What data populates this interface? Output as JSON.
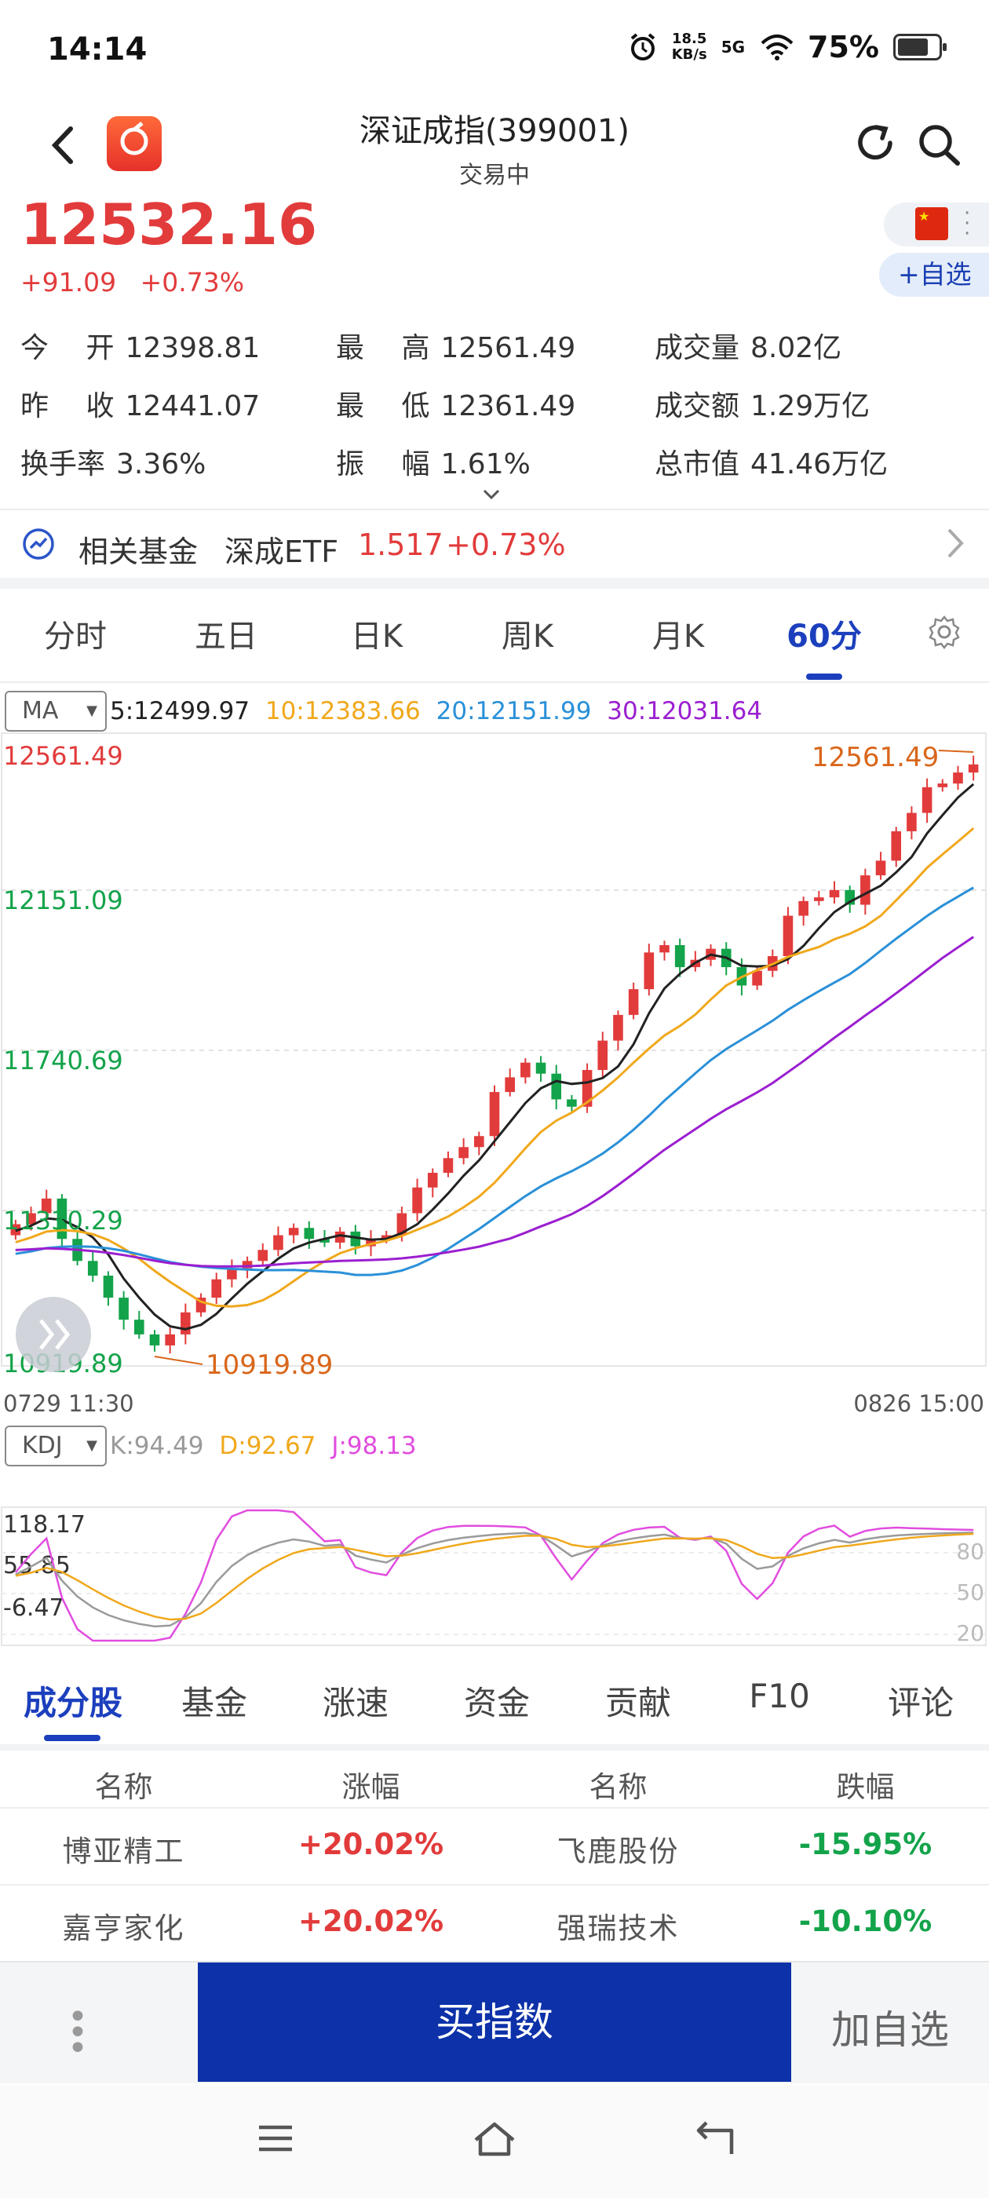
{
  "status_bar": {
    "time": "14:14",
    "speed_top": "18.5",
    "speed_unit": "KB/s",
    "network": "5G",
    "battery": "75%",
    "battery_level": 0.75,
    "icons": [
      "alarm-icon",
      "signal-icon",
      "wifi-icon",
      "battery-icon"
    ]
  },
  "header": {
    "title": "深证成指(399001)",
    "subtitle": "交易中",
    "icons": [
      "back-arrow-icon",
      "app-logo",
      "refresh-icon",
      "search-icon"
    ]
  },
  "quote": {
    "price": "12532.16",
    "change": "+91.09",
    "change_pct": "+0.73%",
    "add_watch": "+自选",
    "up_color": "#e23b3b",
    "down_color": "#13a34a"
  },
  "stats": [
    {
      "label": "今 　开",
      "value": "12398.81"
    },
    {
      "label": "最 　高",
      "value": "12561.49"
    },
    {
      "label": "成交量",
      "value": "8.02亿"
    },
    {
      "label": "昨 　收",
      "value": "12441.07"
    },
    {
      "label": "最 　低",
      "value": "12361.49"
    },
    {
      "label": "成交额",
      "value": "1.29万亿"
    },
    {
      "label": "换手率",
      "value": "3.36%"
    },
    {
      "label": "振 　幅",
      "value": "1.61%"
    },
    {
      "label": "总市值",
      "value": "41.46万亿"
    }
  ],
  "related_fund": {
    "label": "相关基金",
    "name": "深成ETF",
    "price": "1.517",
    "change_pct": "+0.73%"
  },
  "period_tabs": [
    "分时",
    "五日",
    "日K",
    "周K",
    "月K",
    "60分"
  ],
  "active_period": "60分",
  "ma": {
    "selector": "MA",
    "values": [
      {
        "text": "5:12499.97",
        "color": "#222222"
      },
      {
        "text": "10:12383.66",
        "color": "#f0a81c"
      },
      {
        "text": "20:12151.99",
        "color": "#2a90d8"
      },
      {
        "text": "30:12031.64",
        "color": "#9b1fd0"
      }
    ]
  },
  "chart_data": {
    "type": "candlestick",
    "y_axis_labels": [
      "12561.49",
      "12151.09",
      "11740.69",
      "11330.29",
      "10919.89"
    ],
    "ylim": [
      10919.89,
      12561.49
    ],
    "x_start": "0729 11:30",
    "x_end": "0826 15:00",
    "max_marker": "12561.49",
    "min_marker": "10919.89",
    "close": [
      11280,
      11310,
      11350,
      11240,
      11180,
      11140,
      11080,
      11020,
      10980,
      10950,
      10980,
      11040,
      11080,
      11130,
      11160,
      11180,
      11210,
      11250,
      11270,
      11240,
      11230,
      11260,
      11220,
      11240,
      11250,
      11310,
      11380,
      11420,
      11460,
      11490,
      11520,
      11640,
      11680,
      11720,
      11690,
      11620,
      11600,
      11700,
      11780,
      11850,
      11920,
      12020,
      12040,
      11980,
      12000,
      12030,
      11980,
      11930,
      11970,
      12010,
      12120,
      12160,
      12170,
      12190,
      12150,
      12230,
      12270,
      12350,
      12400,
      12470,
      12480,
      12510,
      12532
    ]
  },
  "kdj": {
    "selector": "KDJ",
    "values": [
      {
        "text": "K:94.49",
        "color": "#9a9a9a"
      },
      {
        "text": "D:92.67",
        "color": "#f0a81c"
      },
      {
        "text": "J:98.13",
        "color": "#e14ddf"
      }
    ],
    "axis_labels": [
      "118.17",
      "55.85",
      "-6.47"
    ],
    "right_labels": [
      "80",
      "50",
      "20"
    ]
  },
  "sub_tabs": [
    "成分股",
    "基金",
    "涨速",
    "资金",
    "贡献",
    "F10",
    "评论"
  ],
  "active_sub_tab": "成分股",
  "constituents": {
    "headers": [
      "名称",
      "涨幅",
      "名称",
      "跌幅"
    ],
    "rows": [
      {
        "gain_name": "博亚精工",
        "gain": "+20.02%",
        "loss_name": "飞鹿股份",
        "loss": "-15.95%"
      },
      {
        "gain_name": "嘉亨家化",
        "gain": "+20.02%",
        "loss_name": "强瑞技术",
        "loss": "-10.10%"
      }
    ]
  },
  "actions": {
    "more": "• • •",
    "buy": "买指数",
    "add": "加自选",
    "buy_color": "#0c31a8"
  },
  "nav_icons": [
    "menu-icon",
    "home-icon",
    "back-icon"
  ]
}
